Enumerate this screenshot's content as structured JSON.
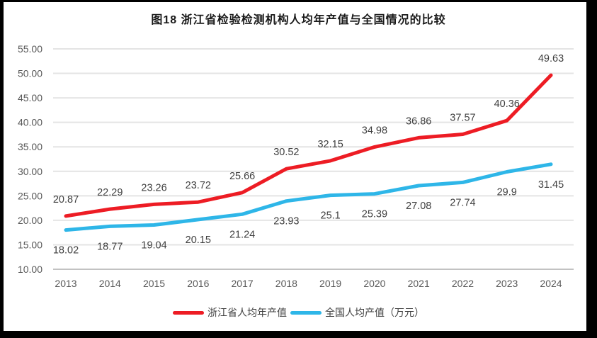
{
  "title": "图18  浙江省检验检测机构人均年产值与全国情况的比较",
  "colors": {
    "zhejiang_red": "#ED1C24",
    "national_blue": "#2EB6E8",
    "gridline": "#E4E4E4",
    "axis_line": "#C2C2C2",
    "tick_text": "#595959",
    "data_label_text": "#3F3F3F",
    "title_text": "#1A1A1A",
    "frame": "#000000",
    "background": "#FFFFFF"
  },
  "chart_data": {
    "type": "line",
    "title": "图18  浙江省检验检测机构人均年产值与全国情况的比较",
    "categories": [
      "2013",
      "2014",
      "2015",
      "2016",
      "2017",
      "2018",
      "2019",
      "2020",
      "2021",
      "2022",
      "2023",
      "2024"
    ],
    "series": [
      {
        "id": "zhejiang",
        "name": "浙江省人均年产值",
        "color": "#ED1C24",
        "values": [
          20.87,
          22.29,
          23.26,
          23.72,
          25.66,
          30.52,
          32.15,
          34.98,
          36.86,
          37.57,
          40.36,
          49.63
        ],
        "labels": [
          "20.87",
          "22.29",
          "23.26",
          "23.72",
          "25.66",
          "30.52",
          "32.15",
          "34.98",
          "36.86",
          "37.57",
          "40.36",
          "49.63"
        ],
        "label_position": "above"
      },
      {
        "id": "national",
        "name": "全国人均产值（万元）",
        "color": "#2EB6E8",
        "values": [
          18.02,
          18.77,
          19.04,
          20.15,
          21.24,
          23.93,
          25.1,
          25.39,
          27.08,
          27.74,
          29.9,
          31.45
        ],
        "labels": [
          "18.02",
          "18.77",
          "19.04",
          "20.15",
          "21.24",
          "23.93",
          "25.1",
          "25.39",
          "27.08",
          "27.74",
          "29.9",
          "31.45"
        ],
        "label_position": "below"
      }
    ],
    "xlabel": "",
    "ylabel": "",
    "ylim": [
      10,
      55
    ],
    "y_tick_step": 5,
    "y_tick_labels": [
      "55.00",
      "50.00",
      "45.00",
      "40.00",
      "35.00",
      "30.00",
      "25.00",
      "20.00",
      "15.00",
      "10.00"
    ],
    "grid": "horizontal",
    "legend_position": "bottom"
  }
}
